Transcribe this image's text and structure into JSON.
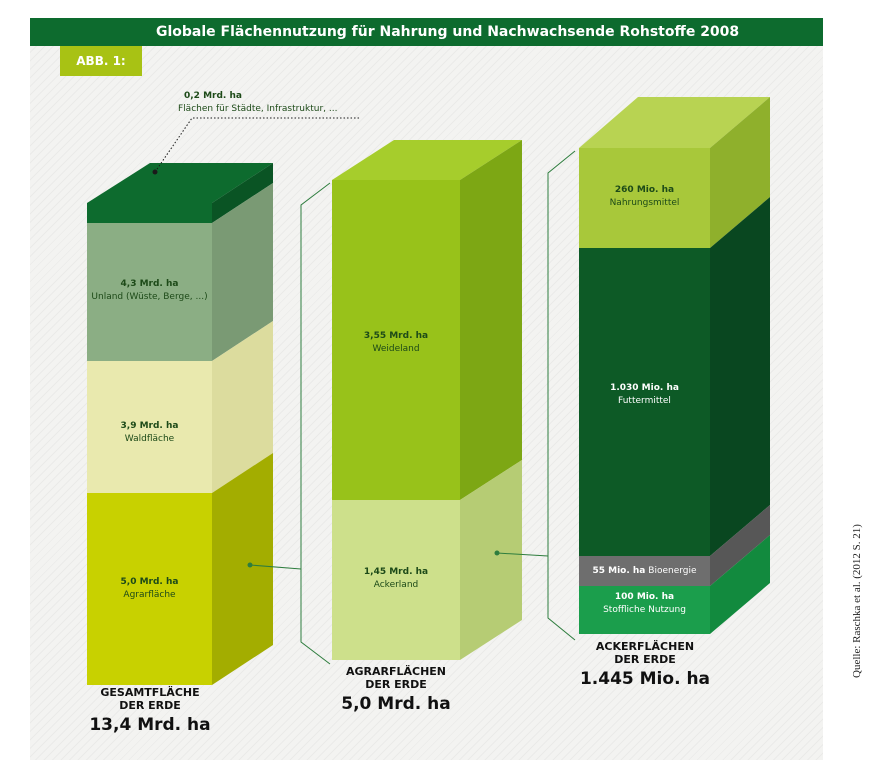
{
  "title": "Globale Flächennutzung für Nahrung und Nachwachsende Rohstoffe 2008",
  "figure_label": "ABB. 1:",
  "source": "Quelle: Raschka et al. (2012 S. 21)",
  "colors": {
    "title_bar": "#0d6b2e",
    "tab": "#a8c214",
    "staedte": "#0d6b2e",
    "unland": "#8bae84",
    "wald": "#e9e9ae",
    "agrar": "#c8d100",
    "weide": "#98c21a",
    "acker": "#cde08b",
    "nahrung": "#a8c83a",
    "futter": "#0d5a26",
    "bioenergie": "#6e6e6e",
    "stoffliche": "#1b9e4c"
  },
  "columns": {
    "gesamt": {
      "caption_line1": "GESAMTFLÄCHE",
      "caption_line2": "DER ERDE",
      "total": "13,4 Mrd. ha",
      "segments": {
        "staedte": {
          "value": "0,2 Mrd. ha",
          "label": "Flächen für Städte, Infrastruktur, ..."
        },
        "unland": {
          "value": "4,3 Mrd. ha",
          "label": "Unland (Wüste, Berge, ...)"
        },
        "wald": {
          "value": "3,9 Mrd. ha",
          "label": "Waldfläche"
        },
        "agrar": {
          "value": "5,0 Mrd. ha",
          "label": "Agrarfläche"
        }
      }
    },
    "agrar": {
      "caption_line1": "AGRARFLÄCHEN",
      "caption_line2": "DER ERDE",
      "total": "5,0 Mrd. ha",
      "segments": {
        "weide": {
          "value": "3,55 Mrd. ha",
          "label": "Weideland"
        },
        "acker": {
          "value": "1,45 Mrd. ha",
          "label": "Ackerland"
        }
      }
    },
    "acker": {
      "caption_line1": "ACKERFLÄCHEN",
      "caption_line2": "DER ERDE",
      "total": "1.445 Mio. ha",
      "segments": {
        "nahrung": {
          "value": "260 Mio. ha",
          "label": "Nahrungsmittel"
        },
        "futter": {
          "value": "1.030 Mio. ha",
          "label": "Futtermittel"
        },
        "bioenergie": {
          "value": "55 Mio. ha",
          "label": "Bioenergie"
        },
        "stoffliche": {
          "value": "100 Mio. ha",
          "label": "Stoffliche Nutzung"
        }
      }
    }
  }
}
